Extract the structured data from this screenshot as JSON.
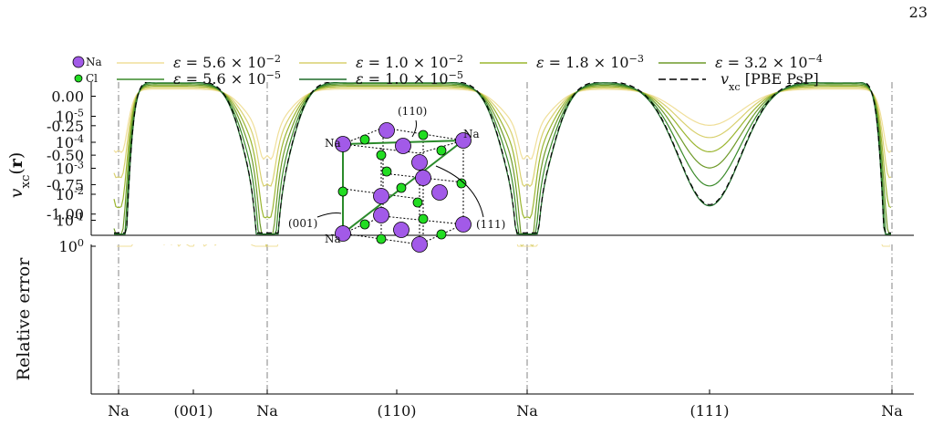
{
  "page": {
    "number": "23"
  },
  "chart_data": {
    "type": "line",
    "x_labels": [
      "Na",
      "(001)",
      "Na",
      "(110)",
      "Na",
      "(111)",
      "Na"
    ],
    "panels": [
      {
        "name": "top",
        "ylabel": "v_xc(r)",
        "ylim": [
          -1.18,
          0.12
        ],
        "y_ticks": [
          "0.00",
          "-0.25",
          "-0.50",
          "-0.75",
          "-1.00"
        ],
        "y_tick_values": [
          0.0,
          -0.25,
          -0.5,
          -0.75,
          -1.0
        ]
      },
      {
        "name": "bottom",
        "ylabel": "Relative error",
        "scale": "log",
        "y_ticks": [
          "10^0",
          "10^-1",
          "10^-2",
          "10^-3",
          "10^-4",
          "10^-5"
        ],
        "y_tick_exponents": [
          0,
          -1,
          -2,
          -3,
          -4,
          -5
        ]
      }
    ],
    "legend": {
      "atoms": [
        {
          "label": "Na",
          "color": "#a25ae8"
        },
        {
          "label": "Cl",
          "color": "#22dd22"
        }
      ],
      "series": [
        {
          "label": "ε = 5.6 × 10^-2",
          "color": "#f0df9a"
        },
        {
          "label": "ε = 1.0 × 10^-2",
          "color": "#d8d06e"
        },
        {
          "label": "ε = 1.8 × 10^-3",
          "color": "#9ab52e"
        },
        {
          "label": "ε = 3.2 × 10^-4",
          "color": "#6f9a2a"
        },
        {
          "label": "ε = 5.6 × 10^-5",
          "color": "#3a8a2a"
        },
        {
          "label": "ε = 1.0 × 10^-5",
          "color": "#1f6b2a"
        },
        {
          "label": "v_xc [PBE PsP]",
          "color": "#000000",
          "dashed": true
        }
      ]
    },
    "inset": {
      "labels": {
        "na_top": "Na",
        "na_left": "Na",
        "na_bottom": "Na",
        "dir_110": "(110)",
        "dir_001": "(001)",
        "dir_111": "(111)"
      }
    }
  }
}
